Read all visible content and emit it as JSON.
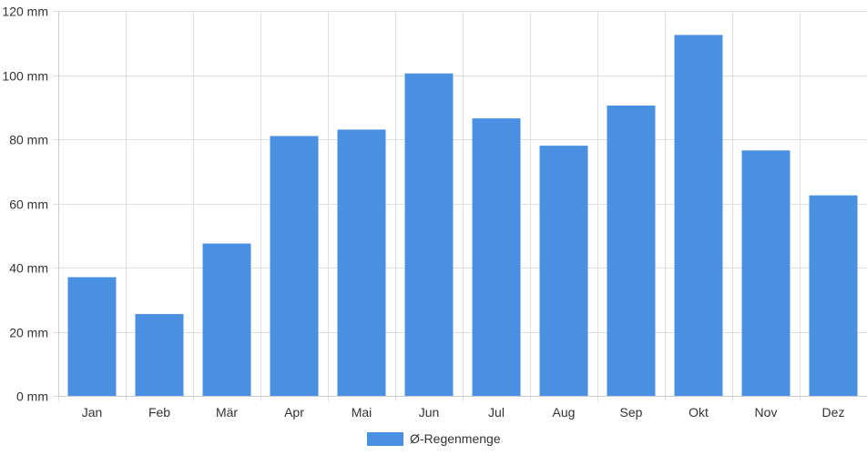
{
  "chart_data": {
    "type": "bar",
    "categories": [
      "Jan",
      "Feb",
      "Mär",
      "Apr",
      "Mai",
      "Jun",
      "Jul",
      "Aug",
      "Sep",
      "Okt",
      "Nov",
      "Dez"
    ],
    "series": [
      {
        "name": "Ø-Regenmenge",
        "values": [
          37,
          25.5,
          47.5,
          81,
          83,
          100.5,
          86.5,
          78,
          90.5,
          112.5,
          76.5,
          62.5
        ],
        "color": "#4a90e2"
      }
    ],
    "yticks": [
      0,
      20,
      40,
      60,
      80,
      100,
      120
    ],
    "ytick_suffix": " mm",
    "ylim": [
      0,
      120
    ],
    "grid": true,
    "legend_position": "bottom-center"
  }
}
